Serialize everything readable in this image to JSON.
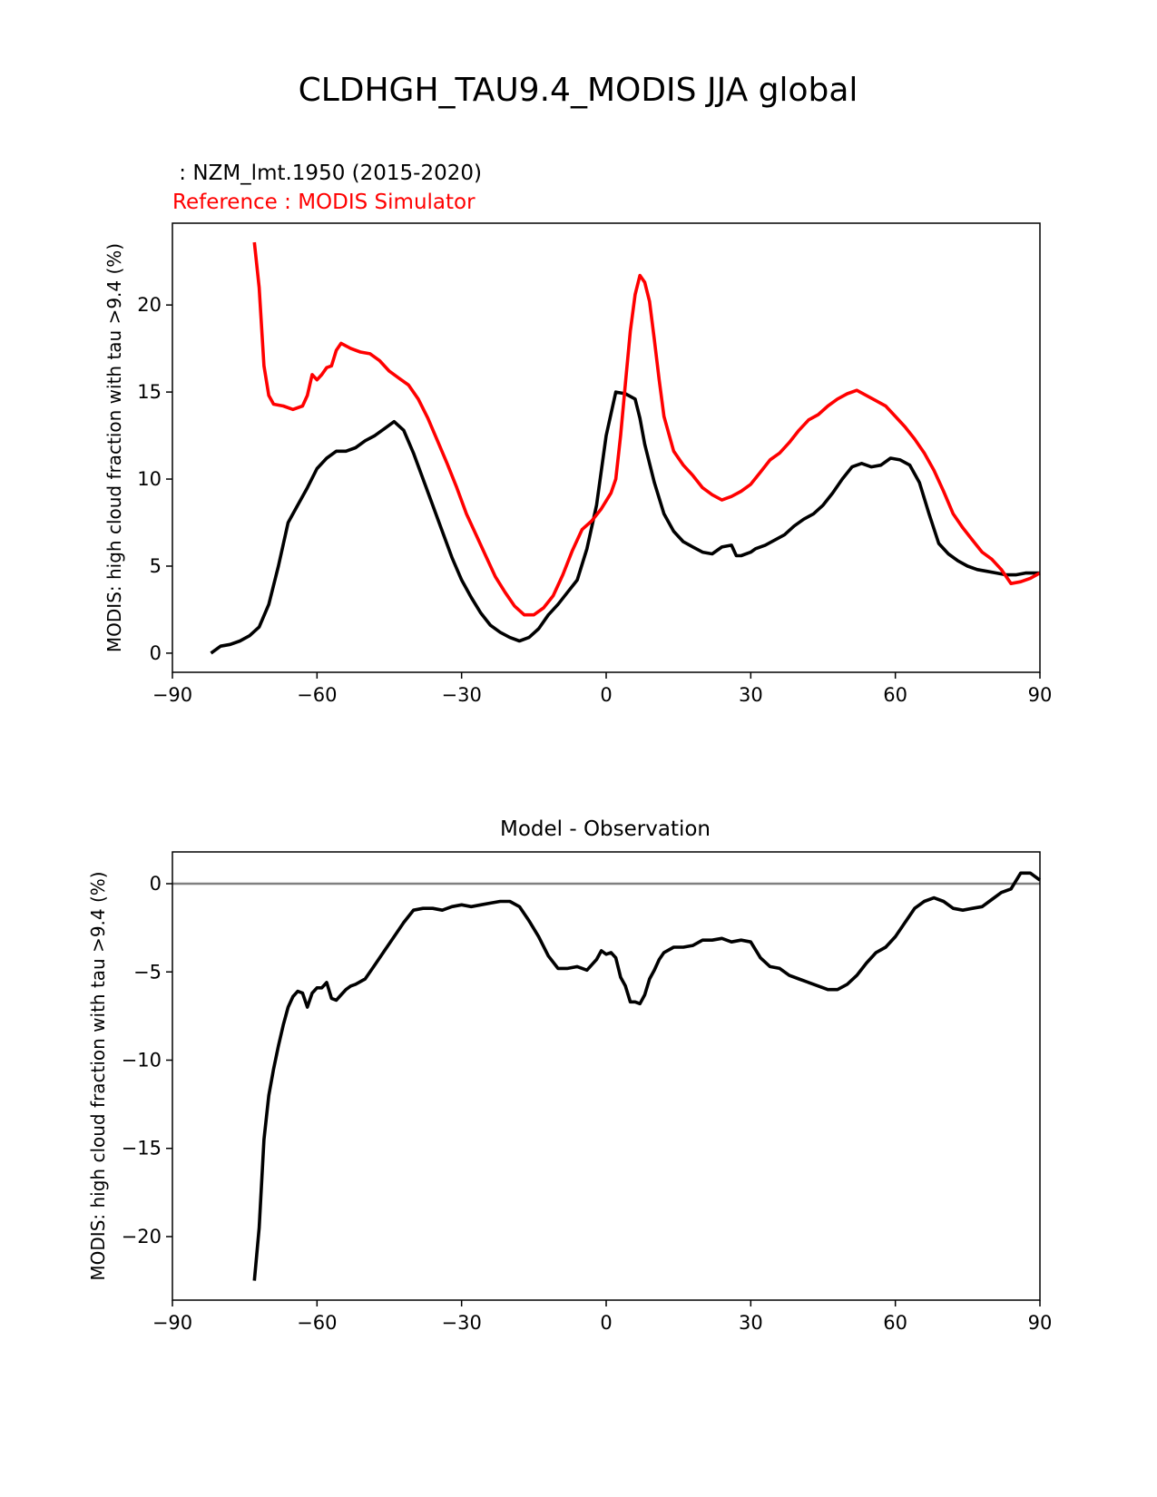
{
  "figure_title": "CLDHGH_TAU9.4_MODIS JJA global",
  "chart_data": [
    {
      "type": "line",
      "subtitle_test": " : NZM_lmt.1950 (2015-2020)",
      "subtitle_reference": "Reference : MODIS Simulator",
      "title": "",
      "xlabel": "",
      "ylabel": "MODIS: high cloud fraction with tau >9.4 (%)",
      "xlim": [
        -90,
        90
      ],
      "ylim": [
        -1.1,
        24.7
      ],
      "xticks": [
        -90,
        -60,
        -30,
        0,
        30,
        60,
        90
      ],
      "xtick_labels": [
        "−90",
        "−60",
        "−30",
        "0",
        "30",
        "60",
        "90"
      ],
      "yticks": [
        0,
        5,
        10,
        15,
        20
      ],
      "ytick_labels": [
        "0",
        "5",
        "10",
        "15",
        "20"
      ],
      "series": [
        {
          "name": "NZM_lmt.1950 (2015-2020)",
          "color": "#000000",
          "x": [
            -82,
            -80,
            -78,
            -76,
            -74,
            -72,
            -70,
            -68,
            -66,
            -64,
            -62,
            -60,
            -58,
            -56,
            -54,
            -52,
            -50,
            -48,
            -46,
            -44,
            -42,
            -40,
            -38,
            -36,
            -34,
            -32,
            -30,
            -28,
            -26,
            -24,
            -22,
            -20,
            -18,
            -16,
            -14,
            -12,
            -10,
            -8,
            -6,
            -4,
            -2,
            0,
            2,
            4,
            6,
            7,
            8,
            10,
            12,
            14,
            16,
            18,
            20,
            22,
            24,
            26,
            27,
            28,
            30,
            31,
            33,
            35,
            37,
            39,
            41,
            43,
            45,
            47,
            49,
            51,
            53,
            55,
            57,
            59,
            61,
            63,
            65,
            67,
            69,
            71,
            73,
            75,
            77,
            79,
            81,
            83,
            85,
            87,
            89,
            90
          ],
          "y": [
            0.0,
            0.4,
            0.5,
            0.7,
            1.0,
            1.5,
            2.8,
            5.0,
            7.5,
            8.5,
            9.5,
            10.6,
            11.2,
            11.6,
            11.6,
            11.8,
            12.2,
            12.5,
            12.9,
            13.3,
            12.8,
            11.5,
            10.0,
            8.5,
            7.0,
            5.5,
            4.2,
            3.2,
            2.3,
            1.6,
            1.2,
            0.9,
            0.7,
            0.9,
            1.4,
            2.2,
            2.8,
            3.5,
            4.2,
            6.0,
            8.5,
            12.5,
            15.0,
            14.9,
            14.6,
            13.5,
            12.0,
            9.8,
            8.0,
            7.0,
            6.4,
            6.1,
            5.8,
            5.7,
            6.1,
            6.2,
            5.6,
            5.6,
            5.8,
            6.0,
            6.2,
            6.5,
            6.8,
            7.3,
            7.7,
            8.0,
            8.5,
            9.2,
            10.0,
            10.7,
            10.9,
            10.7,
            10.8,
            11.2,
            11.1,
            10.8,
            9.8,
            8.0,
            6.3,
            5.7,
            5.3,
            5.0,
            4.8,
            4.7,
            4.6,
            4.5,
            4.5,
            4.6,
            4.6,
            4.6
          ]
        },
        {
          "name": "MODIS Simulator",
          "color": "#ff0000",
          "x": [
            -73,
            -72,
            -71,
            -70,
            -69,
            -67,
            -65,
            -63,
            -62,
            -61,
            -60,
            -59,
            -58,
            -57,
            -56,
            -55,
            -53,
            -51,
            -49,
            -47,
            -45,
            -43,
            -41,
            -39,
            -37,
            -35,
            -33,
            -31,
            -29,
            -27,
            -25,
            -23,
            -21,
            -19,
            -17,
            -15,
            -13,
            -11,
            -9,
            -7,
            -5,
            -3,
            -1,
            1,
            2,
            3,
            4,
            5,
            6,
            7,
            8,
            9,
            10,
            11,
            12,
            14,
            16,
            18,
            20,
            22,
            24,
            26,
            28,
            30,
            32,
            34,
            36,
            38,
            40,
            42,
            44,
            46,
            48,
            50,
            52,
            54,
            56,
            58,
            60,
            62,
            64,
            66,
            68,
            70,
            72,
            74,
            76,
            78,
            80,
            82,
            84,
            86,
            88,
            90
          ],
          "y": [
            23.6,
            21.0,
            16.5,
            14.8,
            14.3,
            14.2,
            14.0,
            14.2,
            14.8,
            16.0,
            15.7,
            16.0,
            16.4,
            16.5,
            17.4,
            17.8,
            17.5,
            17.3,
            17.2,
            16.8,
            16.2,
            15.8,
            15.4,
            14.6,
            13.5,
            12.2,
            10.9,
            9.5,
            8.0,
            6.8,
            5.6,
            4.4,
            3.5,
            2.7,
            2.2,
            2.2,
            2.6,
            3.3,
            4.5,
            5.9,
            7.1,
            7.6,
            8.3,
            9.2,
            10.0,
            12.5,
            15.5,
            18.5,
            20.6,
            21.7,
            21.3,
            20.2,
            18.0,
            15.7,
            13.6,
            11.6,
            10.8,
            10.2,
            9.5,
            9.1,
            8.8,
            9.0,
            9.3,
            9.7,
            10.4,
            11.1,
            11.5,
            12.1,
            12.8,
            13.4,
            13.7,
            14.2,
            14.6,
            14.9,
            15.1,
            14.8,
            14.5,
            14.2,
            13.6,
            13.0,
            12.3,
            11.5,
            10.5,
            9.3,
            8.0,
            7.2,
            6.5,
            5.8,
            5.4,
            4.8,
            4.0,
            4.1,
            4.3,
            4.6
          ]
        }
      ]
    },
    {
      "type": "line",
      "title": "Model - Observation",
      "xlabel": "",
      "ylabel": "MODIS: high cloud fraction with tau >9.4 (%)",
      "xlim": [
        -90,
        90
      ],
      "ylim": [
        -23.6,
        1.8
      ],
      "xticks": [
        -90,
        -60,
        -30,
        0,
        30,
        60,
        90
      ],
      "xtick_labels": [
        "−90",
        "−60",
        "−30",
        "0",
        "30",
        "60",
        "90"
      ],
      "yticks": [
        0,
        -5,
        -10,
        -15,
        -20
      ],
      "ytick_labels": [
        "0",
        "−5",
        "−10",
        "−15",
        "−20"
      ],
      "reference_line": {
        "y": 0,
        "color": "#808080"
      },
      "series": [
        {
          "name": "Model - Observation",
          "color": "#000000",
          "x": [
            -73,
            -72,
            -71,
            -70,
            -69,
            -68,
            -67,
            -66,
            -65,
            -64,
            -63,
            -62,
            -61,
            -60,
            -59,
            -58,
            -57,
            -56,
            -55,
            -54,
            -53,
            -52,
            -50,
            -48,
            -46,
            -44,
            -42,
            -40,
            -38,
            -36,
            -34,
            -32,
            -30,
            -28,
            -26,
            -24,
            -22,
            -20,
            -18,
            -16,
            -14,
            -12,
            -10,
            -8,
            -6,
            -4,
            -2,
            -1,
            0,
            1,
            2,
            3,
            4,
            5,
            6,
            7,
            8,
            9,
            10,
            11,
            12,
            14,
            16,
            18,
            20,
            22,
            24,
            26,
            28,
            30,
            32,
            34,
            36,
            38,
            40,
            42,
            44,
            46,
            48,
            50,
            52,
            54,
            56,
            58,
            60,
            62,
            64,
            66,
            68,
            70,
            72,
            74,
            76,
            78,
            80,
            82,
            84,
            86,
            88,
            90
          ],
          "y": [
            -22.5,
            -19.5,
            -14.5,
            -12.0,
            -10.5,
            -9.2,
            -8.0,
            -7.0,
            -6.4,
            -6.1,
            -6.2,
            -7.0,
            -6.2,
            -5.9,
            -5.9,
            -5.6,
            -6.5,
            -6.6,
            -6.3,
            -6.0,
            -5.8,
            -5.7,
            -5.4,
            -4.6,
            -3.8,
            -3.0,
            -2.2,
            -1.5,
            -1.4,
            -1.4,
            -1.5,
            -1.3,
            -1.2,
            -1.3,
            -1.2,
            -1.1,
            -1.0,
            -1.0,
            -1.3,
            -2.1,
            -3.0,
            -4.1,
            -4.8,
            -4.8,
            -4.7,
            -4.9,
            -4.3,
            -3.8,
            -4.0,
            -3.9,
            -4.2,
            -5.3,
            -5.8,
            -6.7,
            -6.7,
            -6.8,
            -6.3,
            -5.4,
            -4.9,
            -4.3,
            -3.9,
            -3.6,
            -3.6,
            -3.5,
            -3.2,
            -3.2,
            -3.1,
            -3.3,
            -3.2,
            -3.3,
            -4.2,
            -4.7,
            -4.8,
            -5.2,
            -5.4,
            -5.6,
            -5.8,
            -6.0,
            -6.0,
            -5.7,
            -5.2,
            -4.5,
            -3.9,
            -3.6,
            -3.0,
            -2.2,
            -1.4,
            -1.0,
            -0.8,
            -1.0,
            -1.4,
            -1.5,
            -1.4,
            -1.3,
            -0.9,
            -0.5,
            -0.3,
            0.6,
            0.6,
            0.2
          ]
        }
      ]
    }
  ]
}
